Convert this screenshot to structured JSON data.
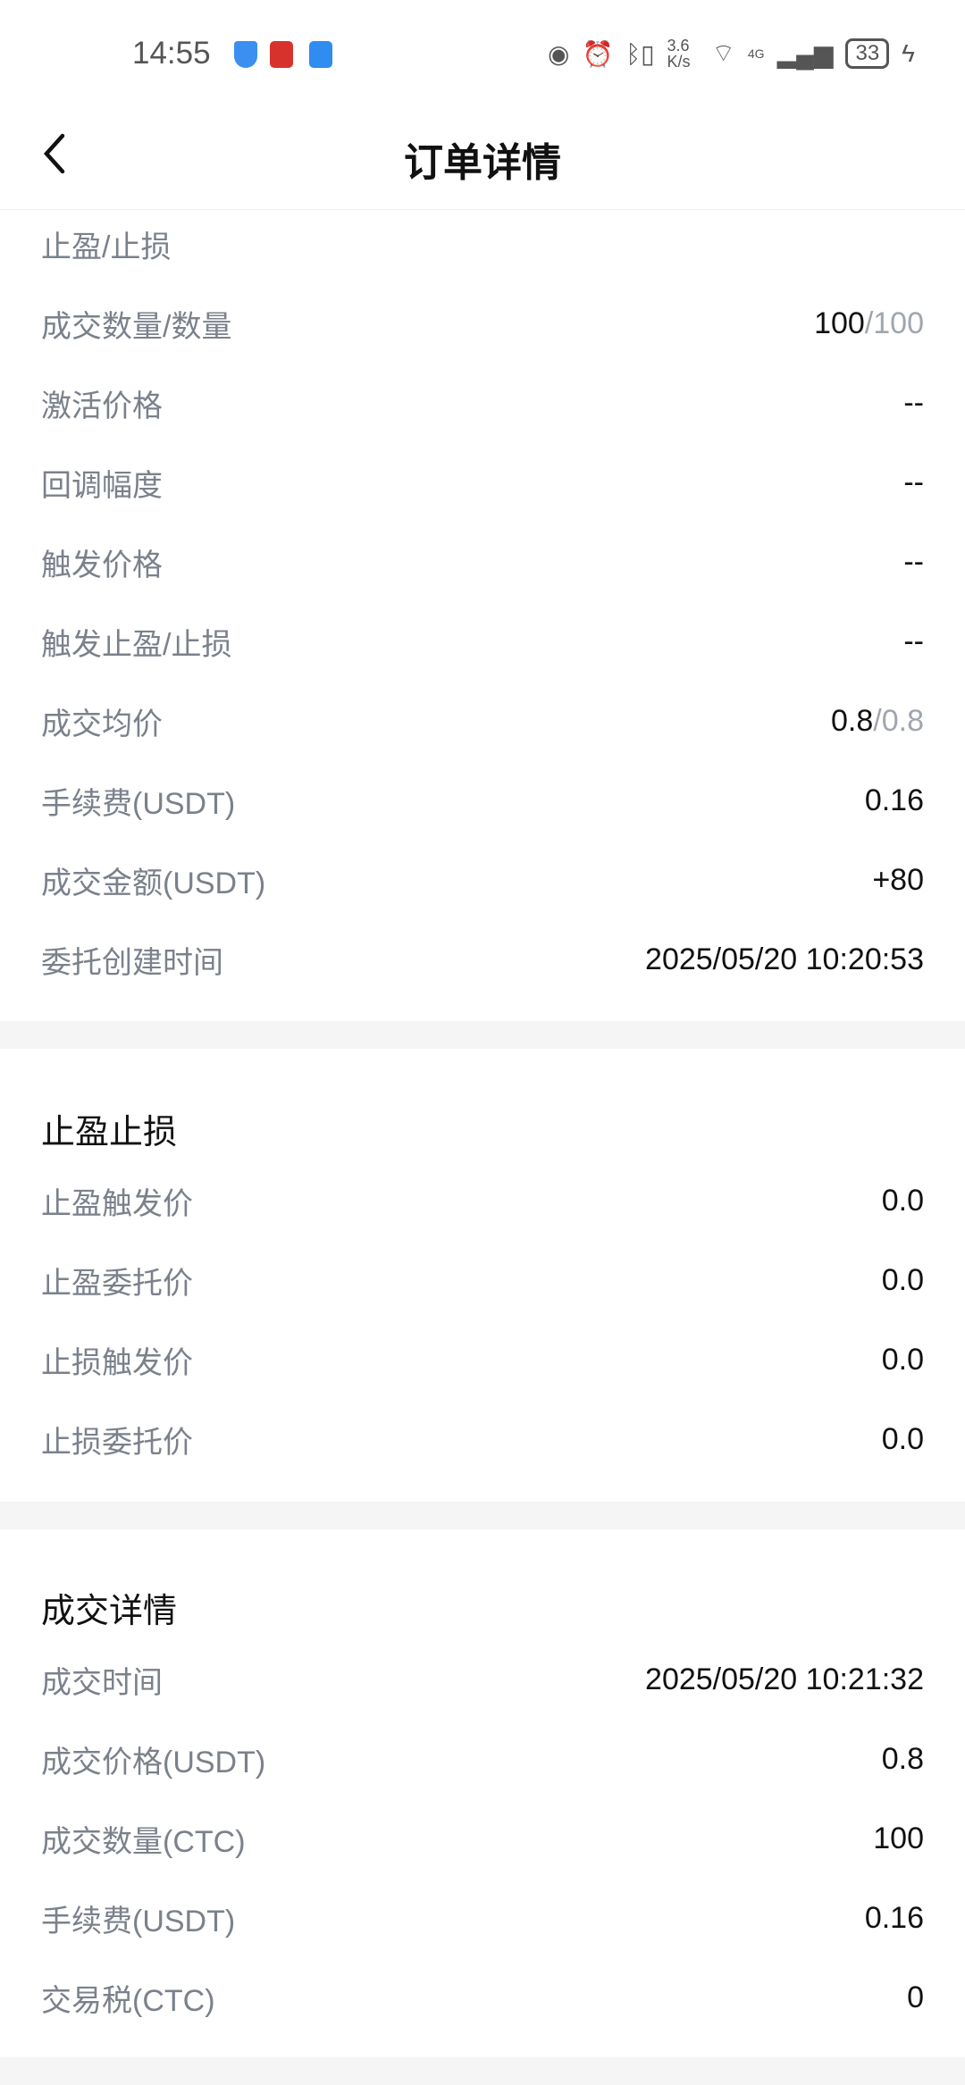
{
  "status_bar": {
    "time": "14:55",
    "net_speed": "3.6 K/s",
    "network": "4G",
    "battery": "33"
  },
  "header": {
    "title": "订单详情"
  },
  "order": [
    {
      "label": "止盈/止损",
      "value": ""
    },
    {
      "label": "成交数量/数量",
      "value": "100",
      "sub": "/100"
    },
    {
      "label": "激活价格",
      "value": "--"
    },
    {
      "label": "回调幅度",
      "value": "--"
    },
    {
      "label": "触发价格",
      "value": "--"
    },
    {
      "label": "触发止盈/止损",
      "value": "--"
    },
    {
      "label": "成交均价",
      "value": "0.8",
      "sub": "/0.8"
    },
    {
      "label": "手续费(USDT)",
      "value": "0.16"
    },
    {
      "label": "成交金额(USDT)",
      "value": "+80"
    },
    {
      "label": "委托创建时间",
      "value": "2025/05/20 10:20:53"
    }
  ],
  "tpsl": {
    "title": "止盈止损",
    "rows": [
      {
        "label": "止盈触发价",
        "value": "0.0"
      },
      {
        "label": "止盈委托价",
        "value": "0.0"
      },
      {
        "label": "止损触发价",
        "value": "0.0"
      },
      {
        "label": "止损委托价",
        "value": "0.0"
      }
    ]
  },
  "fill": {
    "title": "成交详情",
    "rows": [
      {
        "label": "成交时间",
        "value": "2025/05/20 10:21:32"
      },
      {
        "label": "成交价格(USDT)",
        "value": "0.8"
      },
      {
        "label": "成交数量(CTC)",
        "value": "100"
      },
      {
        "label": "手续费(USDT)",
        "value": "0.16"
      },
      {
        "label": "交易税(CTC)",
        "value": "0"
      }
    ]
  }
}
